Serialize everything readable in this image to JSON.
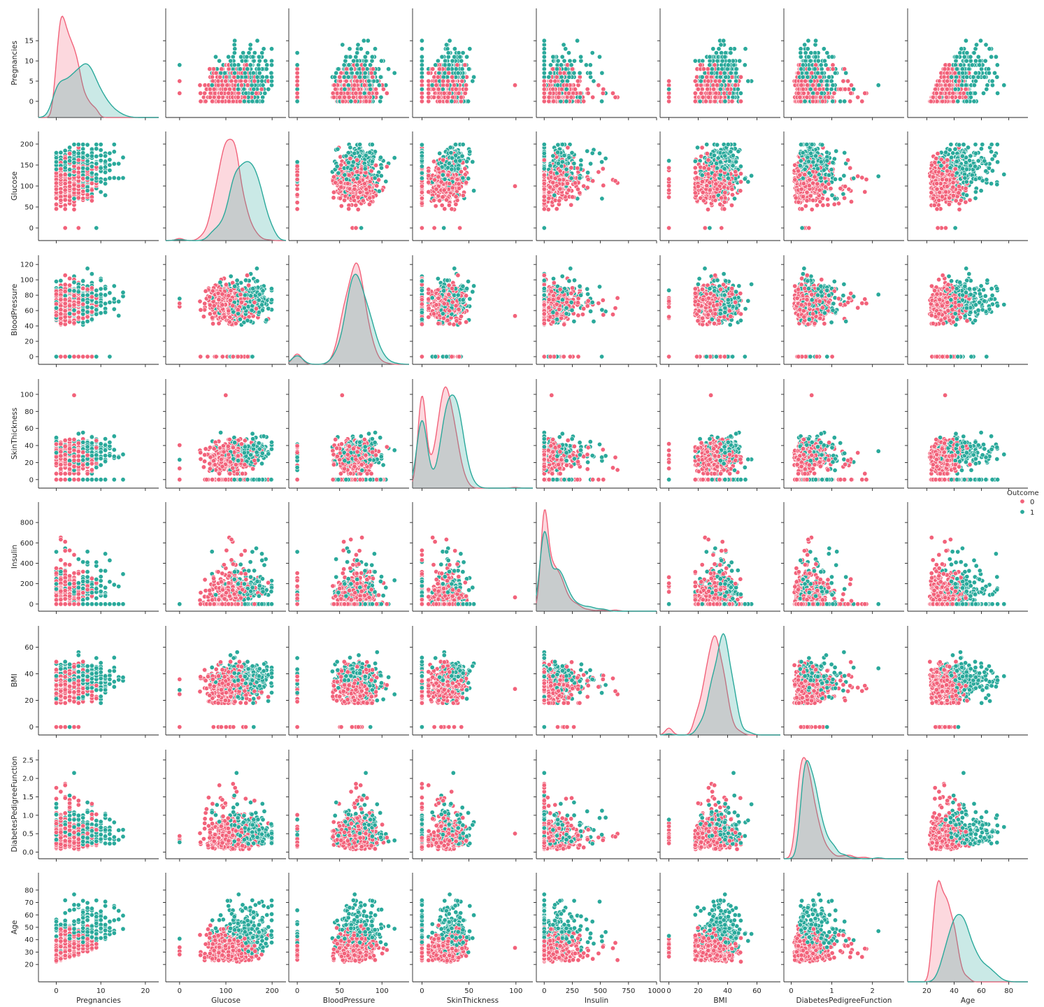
{
  "chart_data": {
    "type": "scatter",
    "variables": [
      "Pregnancies",
      "Glucose",
      "BloodPressure",
      "SkinThickness",
      "Insulin",
      "BMI",
      "DiabetesPedigreeFunction",
      "Age"
    ],
    "ranges": {
      "Pregnancies": [
        -4,
        23
      ],
      "Glucose": [
        -30,
        230
      ],
      "BloodPressure": [
        -10,
        132
      ],
      "SkinThickness": [
        -10,
        118
      ],
      "Insulin": [
        -70,
        1000
      ],
      "BMI": [
        -6,
        76
      ],
      "DiabetesPedigreeFunction": [
        -0.18,
        2.78
      ],
      "Age": [
        6,
        94
      ]
    },
    "ticks": {
      "Pregnancies": [
        0,
        10,
        20
      ],
      "Glucose": [
        0,
        100,
        200
      ],
      "BloodPressure": [
        0,
        50,
        100
      ],
      "SkinThickness": [
        0,
        50,
        100
      ],
      "Insulin": [
        0,
        250,
        500,
        750,
        1000
      ],
      "BMI": [
        0,
        20,
        40,
        60
      ],
      "DiabetesPedigreeFunction": [
        0,
        1,
        2
      ],
      "Age": [
        20,
        40,
        60,
        80
      ]
    },
    "y_ticks": {
      "Pregnancies": [
        "0",
        "5",
        "10",
        "15"
      ],
      "Glucose": [
        "0",
        "50",
        "100",
        "150",
        "200"
      ],
      "BloodPressure": [
        "0",
        "20",
        "40",
        "60",
        "80",
        "100",
        "120"
      ],
      "SkinThickness": [
        "0",
        "20",
        "40",
        "60",
        "80",
        "100"
      ],
      "Insulin": [
        "0",
        "200",
        "400",
        "600",
        "800"
      ],
      "BMI": [
        "0",
        "20",
        "40",
        "60"
      ],
      "DiabetesPedigreeFunction": [
        "0.0",
        "0.5",
        "1.0",
        "1.5",
        "2.0",
        "2.5"
      ],
      "Age": [
        "20",
        "30",
        "40",
        "50",
        "60",
        "70",
        "80"
      ]
    },
    "x_ticks": {
      "Pregnancies": [
        "0",
        "10",
        "20"
      ],
      "Glucose": [
        "0",
        "100",
        "200"
      ],
      "BloodPressure": [
        "0",
        "50",
        "100"
      ],
      "SkinThickness": [
        "0",
        "50",
        "100"
      ],
      "Insulin": [
        "0",
        "250",
        "500",
        "750",
        "1000"
      ],
      "BMI": [
        "0",
        "20",
        "40",
        "60"
      ],
      "DiabetesPedigreeFunction": [
        "0",
        "1",
        "2"
      ],
      "Age": [
        "20",
        "40",
        "60",
        "80"
      ]
    },
    "hue": "Outcome",
    "legend": {
      "title": "Outcome",
      "entries": [
        "0",
        "1"
      ],
      "placement": "right"
    },
    "colors": {
      "0": "#f2627a",
      "1": "#2aa99b"
    },
    "diagonal": "kde",
    "sample_size": 768,
    "grid": false
  }
}
